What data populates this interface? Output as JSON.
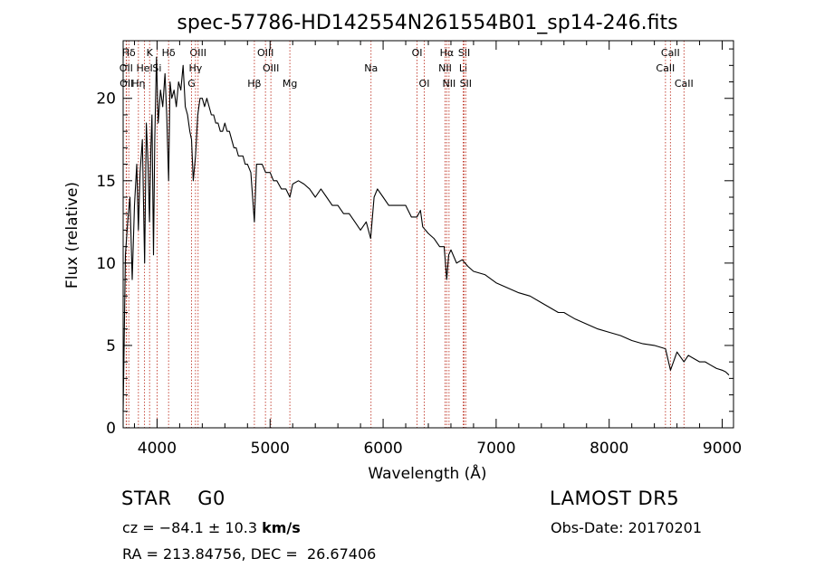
{
  "chart_data": {
    "type": "line",
    "title": "spec-57786-HD142554N261554B01_sp14-246.fits",
    "xlabel": "Wavelength (Å)",
    "ylabel": "Flux (relative)",
    "xlim": [
      3700,
      9100
    ],
    "ylim": [
      0,
      23.5
    ],
    "xticks": [
      4000,
      5000,
      6000,
      7000,
      8000,
      9000
    ],
    "yticks": [
      0,
      5,
      10,
      15,
      20
    ],
    "grid": false,
    "series": [
      {
        "x": [
          3700,
          3720,
          3740,
          3760,
          3780,
          3800,
          3820,
          3835,
          3850,
          3870,
          3890,
          3905,
          3920,
          3933,
          3945,
          3955,
          3968,
          3980,
          3995,
          4010,
          4030,
          4050,
          4070,
          4085,
          4102,
          4115,
          4130,
          4150,
          4170,
          4190,
          4210,
          4230,
          4250,
          4270,
          4290,
          4305,
          4320,
          4340,
          4360,
          4380,
          4400,
          4420,
          4440,
          4460,
          4480,
          4500,
          4520,
          4540,
          4560,
          4580,
          4600,
          4620,
          4640,
          4660,
          4680,
          4700,
          4720,
          4740,
          4760,
          4780,
          4800,
          4830,
          4861,
          4880,
          4900,
          4930,
          4960,
          5000,
          5030,
          5060,
          5100,
          5140,
          5175,
          5200,
          5250,
          5300,
          5350,
          5400,
          5450,
          5500,
          5550,
          5600,
          5650,
          5700,
          5750,
          5800,
          5850,
          5890,
          5920,
          5950,
          6000,
          6050,
          6100,
          6150,
          6200,
          6250,
          6300,
          6330,
          6350,
          6400,
          6450,
          6500,
          6540,
          6563,
          6580,
          6600,
          6650,
          6700,
          6750,
          6800,
          6900,
          7000,
          7100,
          7200,
          7300,
          7400,
          7500,
          7550,
          7600,
          7650,
          7700,
          7800,
          7900,
          8000,
          8100,
          8200,
          8300,
          8400,
          8498,
          8542,
          8600,
          8662,
          8700,
          8750,
          8800,
          8850,
          8900,
          8950,
          9000,
          9030,
          9060
        ],
        "y": [
          1.0,
          10.5,
          12.5,
          14.0,
          9.0,
          13.5,
          16.0,
          12.0,
          15.5,
          17.5,
          10.0,
          18.5,
          16.0,
          12.5,
          17.0,
          19.0,
          10.5,
          17.5,
          22.5,
          18.5,
          20.5,
          19.5,
          21.5,
          19.0,
          15.0,
          21.0,
          20.0,
          20.5,
          19.5,
          21.0,
          20.5,
          22.0,
          19.5,
          19.0,
          18.0,
          17.5,
          15.0,
          16.5,
          19.0,
          20.0,
          20.0,
          19.5,
          20.0,
          19.5,
          19.0,
          19.0,
          18.5,
          18.5,
          18.0,
          18.0,
          18.5,
          18.0,
          18.0,
          17.5,
          17.0,
          17.0,
          16.5,
          16.5,
          16.5,
          16.0,
          16.0,
          15.5,
          12.5,
          16.0,
          16.0,
          16.0,
          15.5,
          15.5,
          15.0,
          15.0,
          14.5,
          14.5,
          14.0,
          14.8,
          15.0,
          14.8,
          14.5,
          14.0,
          14.5,
          14.0,
          13.5,
          13.5,
          13.0,
          13.0,
          12.5,
          12.0,
          12.5,
          11.5,
          14.0,
          14.5,
          14.0,
          13.5,
          13.5,
          13.5,
          13.5,
          12.8,
          12.8,
          13.2,
          12.2,
          11.8,
          11.5,
          11.0,
          11.0,
          9.0,
          10.5,
          10.8,
          10.0,
          10.2,
          9.8,
          9.5,
          9.3,
          8.8,
          8.5,
          8.2,
          8.0,
          7.6,
          7.2,
          7.0,
          7.0,
          6.8,
          6.6,
          6.3,
          6.0,
          5.8,
          5.6,
          5.3,
          5.1,
          5.0,
          4.8,
          3.5,
          4.6,
          4.0,
          4.4,
          4.2,
          4.0,
          4.0,
          3.8,
          3.6,
          3.5,
          3.4,
          3.2
        ]
      }
    ],
    "line_markers": [
      {
        "label": "Hδ",
        "wavelength": 3750,
        "row": 1
      },
      {
        "label": "K",
        "wavelength": 3934,
        "row": 1
      },
      {
        "label": "Hδ",
        "wavelength": 4102,
        "row": 1
      },
      {
        "label": "OIII",
        "wavelength": 4363,
        "row": 1
      },
      {
        "label": "OIII",
        "wavelength": 4959,
        "row": 1
      },
      {
        "label": "OI",
        "wavelength": 6300,
        "row": 1
      },
      {
        "label": "Hα",
        "wavelength": 6563,
        "row": 1
      },
      {
        "label": "SII",
        "wavelength": 6717,
        "row": 1
      },
      {
        "label": "CaII",
        "wavelength": 8542,
        "row": 1
      },
      {
        "label": "OII",
        "wavelength": 3727,
        "row": 2
      },
      {
        "label": "HeI",
        "wavelength": 3889,
        "row": 2
      },
      {
        "label": "Si",
        "wavelength": 4000,
        "row": 2
      },
      {
        "label": "Hγ",
        "wavelength": 4340,
        "row": 2
      },
      {
        "label": "OIII",
        "wavelength": 5007,
        "row": 2
      },
      {
        "label": "Na",
        "wavelength": 5893,
        "row": 2
      },
      {
        "label": "NII",
        "wavelength": 6548,
        "row": 2
      },
      {
        "label": "Li",
        "wavelength": 6708,
        "row": 2
      },
      {
        "label": "CaII",
        "wavelength": 8498,
        "row": 2
      },
      {
        "label": "OII",
        "wavelength": 3730,
        "row": 3
      },
      {
        "label": "Hη",
        "wavelength": 3835,
        "row": 3
      },
      {
        "label": "G",
        "wavelength": 4305,
        "row": 3
      },
      {
        "label": "Hβ",
        "wavelength": 4861,
        "row": 3
      },
      {
        "label": "Mg",
        "wavelength": 5175,
        "row": 3
      },
      {
        "label": "OI",
        "wavelength": 6364,
        "row": 3
      },
      {
        "label": "NII",
        "wavelength": 6583,
        "row": 3
      },
      {
        "label": "SII",
        "wavelength": 6731,
        "row": 3
      },
      {
        "label": "CaII",
        "wavelength": 8662,
        "row": 3
      }
    ]
  },
  "footer": {
    "class_label": "STAR",
    "subclass": "G0",
    "survey": "LAMOST DR5",
    "cz_prefix": "cz = −84.1 ± 10.3 ",
    "cz_unit": "km/s",
    "obs_date": "Obs-Date: 20170201",
    "radec": "RA = 213.84756, DEC =  26.67406"
  }
}
